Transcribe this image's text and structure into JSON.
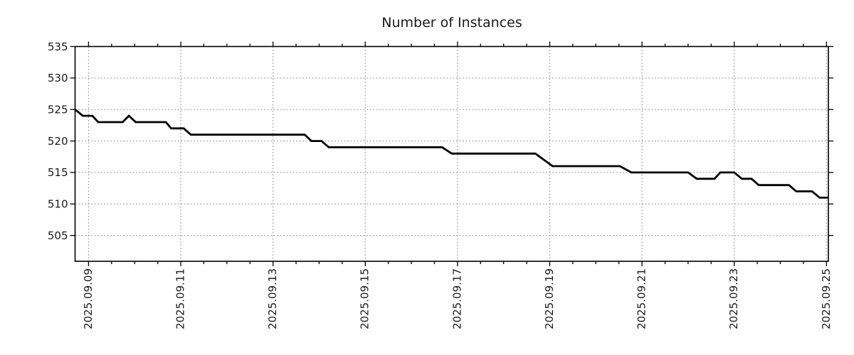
{
  "chart_data": {
    "type": "line",
    "title": "Number of Instances",
    "xlabel": "",
    "ylabel": "",
    "legend": "none",
    "grid": "dotted",
    "ylim": [
      500.9,
      535
    ],
    "yticks": [
      505,
      510,
      515,
      520,
      525,
      530,
      535
    ],
    "xlim": [
      "2025-09-08 17:00",
      "2025-09-25 01:00"
    ],
    "xticks": [
      {
        "t": "2025-09-09 00:00",
        "label": "2025.09.09"
      },
      {
        "t": "2025-09-11 00:00",
        "label": "2025.09.11"
      },
      {
        "t": "2025-09-13 00:00",
        "label": "2025.09.13"
      },
      {
        "t": "2025-09-15 00:00",
        "label": "2025.09.15"
      },
      {
        "t": "2025-09-17 00:00",
        "label": "2025.09.17"
      },
      {
        "t": "2025-09-19 00:00",
        "label": "2025.09.19"
      },
      {
        "t": "2025-09-21 00:00",
        "label": "2025.09.21"
      },
      {
        "t": "2025-09-23 00:00",
        "label": "2025.09.23"
      },
      {
        "t": "2025-09-25 00:00",
        "label": "2025.09.25"
      }
    ],
    "minor_tick_interval_hours": 12,
    "series": [
      {
        "name": "instances",
        "color": "#000000",
        "points": [
          [
            "2025-09-08 17:00",
            525
          ],
          [
            "2025-09-08 21:00",
            524
          ],
          [
            "2025-09-09 02:00",
            524
          ],
          [
            "2025-09-09 05:00",
            523
          ],
          [
            "2025-09-09 17:45",
            523
          ],
          [
            "2025-09-09 21:00",
            524
          ],
          [
            "2025-09-10 00:30",
            523
          ],
          [
            "2025-09-10 16:15",
            523
          ],
          [
            "2025-09-10 19:00",
            522
          ],
          [
            "2025-09-11 01:30",
            522
          ],
          [
            "2025-09-11 05:15",
            521
          ],
          [
            "2025-09-13 16:30",
            521
          ],
          [
            "2025-09-13 20:00",
            520
          ],
          [
            "2025-09-14 01:15",
            520
          ],
          [
            "2025-09-14 05:00",
            519
          ],
          [
            "2025-09-16 16:00",
            519
          ],
          [
            "2025-09-16 21:00",
            518
          ],
          [
            "2025-09-18 16:30",
            518
          ],
          [
            "2025-09-19 01:30",
            516
          ],
          [
            "2025-09-20 12:30",
            516
          ],
          [
            "2025-09-20 18:30",
            515
          ],
          [
            "2025-09-22 00:00",
            515
          ],
          [
            "2025-09-22 04:30",
            514
          ],
          [
            "2025-09-22 13:45",
            514
          ],
          [
            "2025-09-22 16:45",
            515
          ],
          [
            "2025-09-23 00:00",
            515
          ],
          [
            "2025-09-23 04:00",
            514
          ],
          [
            "2025-09-23 09:00",
            514
          ],
          [
            "2025-09-23 12:45",
            513
          ],
          [
            "2025-09-24 04:30",
            513
          ],
          [
            "2025-09-24 08:15",
            512
          ],
          [
            "2025-09-24 16:30",
            512
          ],
          [
            "2025-09-24 20:30",
            511
          ],
          [
            "2025-09-25 01:00",
            511
          ]
        ]
      }
    ],
    "colors": {
      "line": "#000000",
      "grid": "#999999",
      "axis": "#000000",
      "text": "#1a1a1a",
      "background": "#ffffff"
    }
  }
}
